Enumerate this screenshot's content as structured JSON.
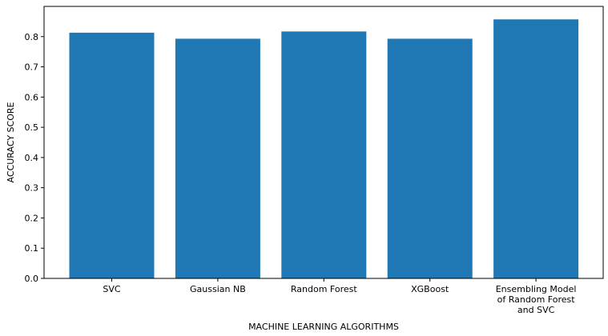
{
  "chart_data": {
    "type": "bar",
    "title": "",
    "xlabel": "MACHINE LEARNING ALGORITHMS",
    "ylabel": "ACCURACY SCORE",
    "categories": [
      [
        "SVC"
      ],
      [
        "Gaussian NB"
      ],
      [
        "Random Forest"
      ],
      [
        "XGBoost"
      ],
      [
        "Ensembling Model",
        "of Random Forest",
        "and SVC"
      ]
    ],
    "values": [
      0.813,
      0.793,
      0.817,
      0.793,
      0.857
    ],
    "ylim": [
      0,
      0.9
    ],
    "yticks": [
      "0.0",
      "0.1",
      "0.2",
      "0.3",
      "0.4",
      "0.5",
      "0.6",
      "0.7",
      "0.8"
    ],
    "grid": false,
    "bar_color": "#1f77b4"
  }
}
